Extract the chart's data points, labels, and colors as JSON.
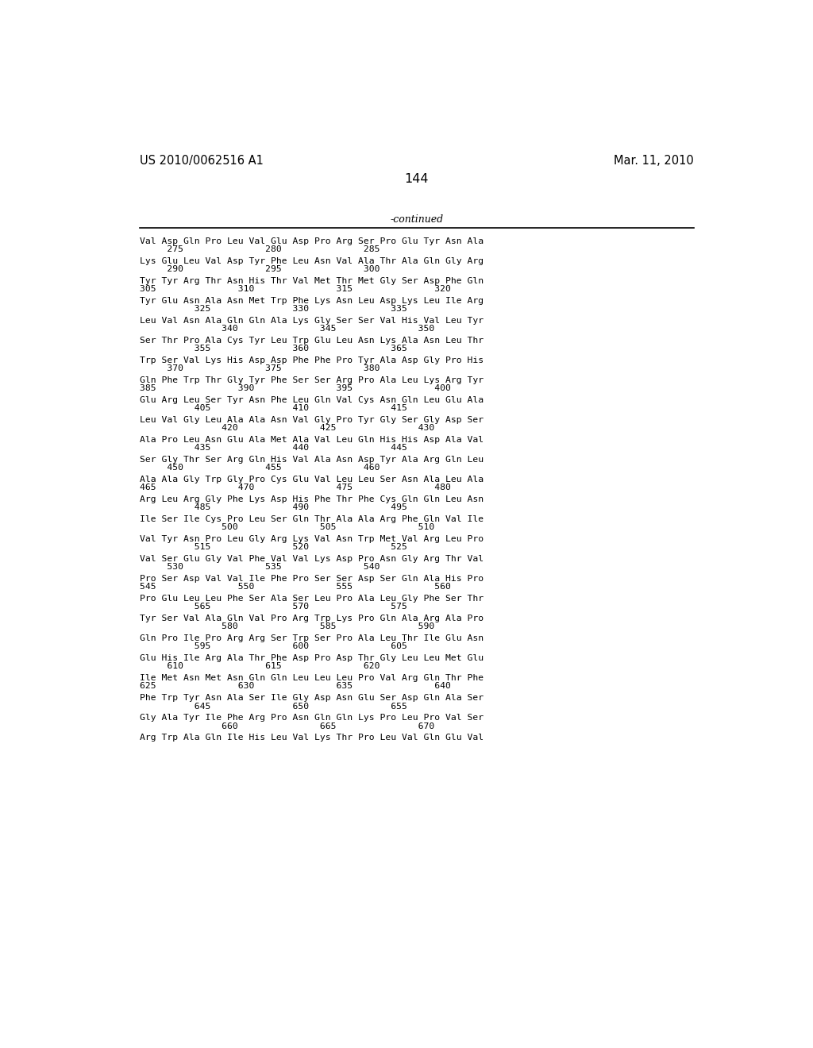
{
  "header_left": "US 2010/0062516 A1",
  "header_right": "Mar. 11, 2010",
  "page_number": "144",
  "continued_label": "-continued",
  "background_color": "#ffffff",
  "text_color": "#000000",
  "lines_pairs": [
    [
      "Val Asp Gln Pro Leu Val Glu Asp Pro Arg Ser Pro Glu Tyr Asn Ala",
      "     275               280               285"
    ],
    [
      "Lys Glu Leu Val Asp Tyr Phe Leu Asn Val Ala Thr Ala Gln Gly Arg",
      "     290               295               300"
    ],
    [
      "Tyr Tyr Arg Thr Asn His Thr Val Met Thr Met Gly Ser Asp Phe Gln",
      "305               310               315               320"
    ],
    [
      "Tyr Glu Asn Ala Asn Met Trp Phe Lys Asn Leu Asp Lys Leu Ile Arg",
      "          325               330               335"
    ],
    [
      "Leu Val Asn Ala Gln Gln Ala Lys Gly Ser Ser Val His Val Leu Tyr",
      "               340               345               350"
    ],
    [
      "Ser Thr Pro Ala Cys Tyr Leu Trp Glu Leu Asn Lys Ala Asn Leu Thr",
      "          355               360               365"
    ],
    [
      "Trp Ser Val Lys His Asp Asp Phe Phe Pro Tyr Ala Asp Gly Pro His",
      "     370               375               380"
    ],
    [
      "Gln Phe Trp Thr Gly Tyr Phe Ser Ser Arg Pro Ala Leu Lys Arg Tyr",
      "385               390               395               400"
    ],
    [
      "Glu Arg Leu Ser Tyr Asn Phe Leu Gln Val Cys Asn Gln Leu Glu Ala",
      "          405               410               415"
    ],
    [
      "Leu Val Gly Leu Ala Ala Asn Val Gly Pro Tyr Gly Ser Gly Asp Ser",
      "               420               425               430"
    ],
    [
      "Ala Pro Leu Asn Glu Ala Met Ala Val Leu Gln His His Asp Ala Val",
      "          435               440               445"
    ],
    [
      "Ser Gly Thr Ser Arg Gln His Val Ala Asn Asp Tyr Ala Arg Gln Leu",
      "     450               455               460"
    ],
    [
      "Ala Ala Gly Trp Gly Pro Cys Glu Val Leu Leu Ser Asn Ala Leu Ala",
      "465               470               475               480"
    ],
    [
      "Arg Leu Arg Gly Phe Lys Asp His Phe Thr Phe Cys Gln Gln Leu Asn",
      "          485               490               495"
    ],
    [
      "Ile Ser Ile Cys Pro Leu Ser Gln Thr Ala Ala Arg Phe Gln Val Ile",
      "               500               505               510"
    ],
    [
      "Val Tyr Asn Pro Leu Gly Arg Lys Val Asn Trp Met Val Arg Leu Pro",
      "          515               520               525"
    ],
    [
      "Val Ser Glu Gly Val Phe Val Val Lys Asp Pro Asn Gly Arg Thr Val",
      "     530               535               540"
    ],
    [
      "Pro Ser Asp Val Val Ile Phe Pro Ser Ser Asp Ser Gln Ala His Pro",
      "545               550               555               560"
    ],
    [
      "Pro Glu Leu Leu Phe Ser Ala Ser Leu Pro Ala Leu Gly Phe Ser Thr",
      "          565               570               575"
    ],
    [
      "Tyr Ser Val Ala Gln Val Pro Arg Trp Lys Pro Gln Ala Arg Ala Pro",
      "               580               585               590"
    ],
    [
      "Gln Pro Ile Pro Arg Arg Ser Trp Ser Pro Ala Leu Thr Ile Glu Asn",
      "          595               600               605"
    ],
    [
      "Glu His Ile Arg Ala Thr Phe Asp Pro Asp Thr Gly Leu Leu Met Glu",
      "     610               615               620"
    ],
    [
      "Ile Met Asn Met Asn Gln Gln Leu Leu Leu Pro Val Arg Gln Thr Phe",
      "625               630               635               640"
    ],
    [
      "Phe Trp Tyr Asn Ala Ser Ile Gly Asp Asn Glu Ser Asp Gln Ala Ser",
      "          645               650               655"
    ],
    [
      "Gly Ala Tyr Ile Phe Arg Pro Asn Gln Gln Lys Pro Leu Pro Val Ser",
      "               660               665               670"
    ],
    [
      "Arg Trp Ala Gln Ile His Leu Val Lys Thr Pro Leu Val Gln Glu Val",
      ""
    ]
  ]
}
